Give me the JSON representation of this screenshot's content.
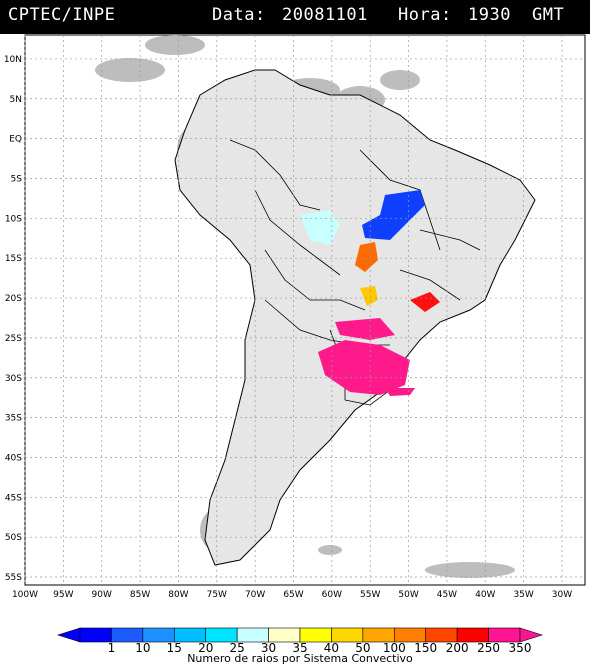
{
  "header": {
    "source": "CPTEC/INPE",
    "data_label": "Data:",
    "date": "20081101",
    "hora_label": "Hora:",
    "time": "1930",
    "tz": "GMT"
  },
  "map": {
    "lat_ticks": [
      "10N",
      "5N",
      "EQ",
      "5S",
      "10S",
      "15S",
      "20S",
      "25S",
      "30S",
      "35S",
      "40S",
      "45S",
      "50S",
      "55S"
    ],
    "lon_ticks": [
      "100W",
      "95W",
      "90W",
      "85W",
      "80W",
      "75W",
      "70W",
      "65W",
      "60W",
      "55W",
      "50W",
      "45W",
      "40W",
      "35W",
      "30W"
    ],
    "lon_range": [
      -100,
      -27
    ],
    "lat_range": [
      -56,
      13
    ]
  },
  "colorbar": {
    "labels": [
      "1",
      "10",
      "15",
      "20",
      "25",
      "30",
      "35",
      "40",
      "50",
      "100",
      "150",
      "200",
      "250",
      "350"
    ],
    "colors": [
      "#0000ff",
      "#1c5cff",
      "#1e90ff",
      "#00bfff",
      "#00e5ff",
      "#c8ffff",
      "#ffffc8",
      "#ffff00",
      "#ffd700",
      "#ffa500",
      "#ff7f00",
      "#ff4500",
      "#ff0000",
      "#ff1493"
    ],
    "caption": "Numero de raios por Sistema Convectivo"
  }
}
